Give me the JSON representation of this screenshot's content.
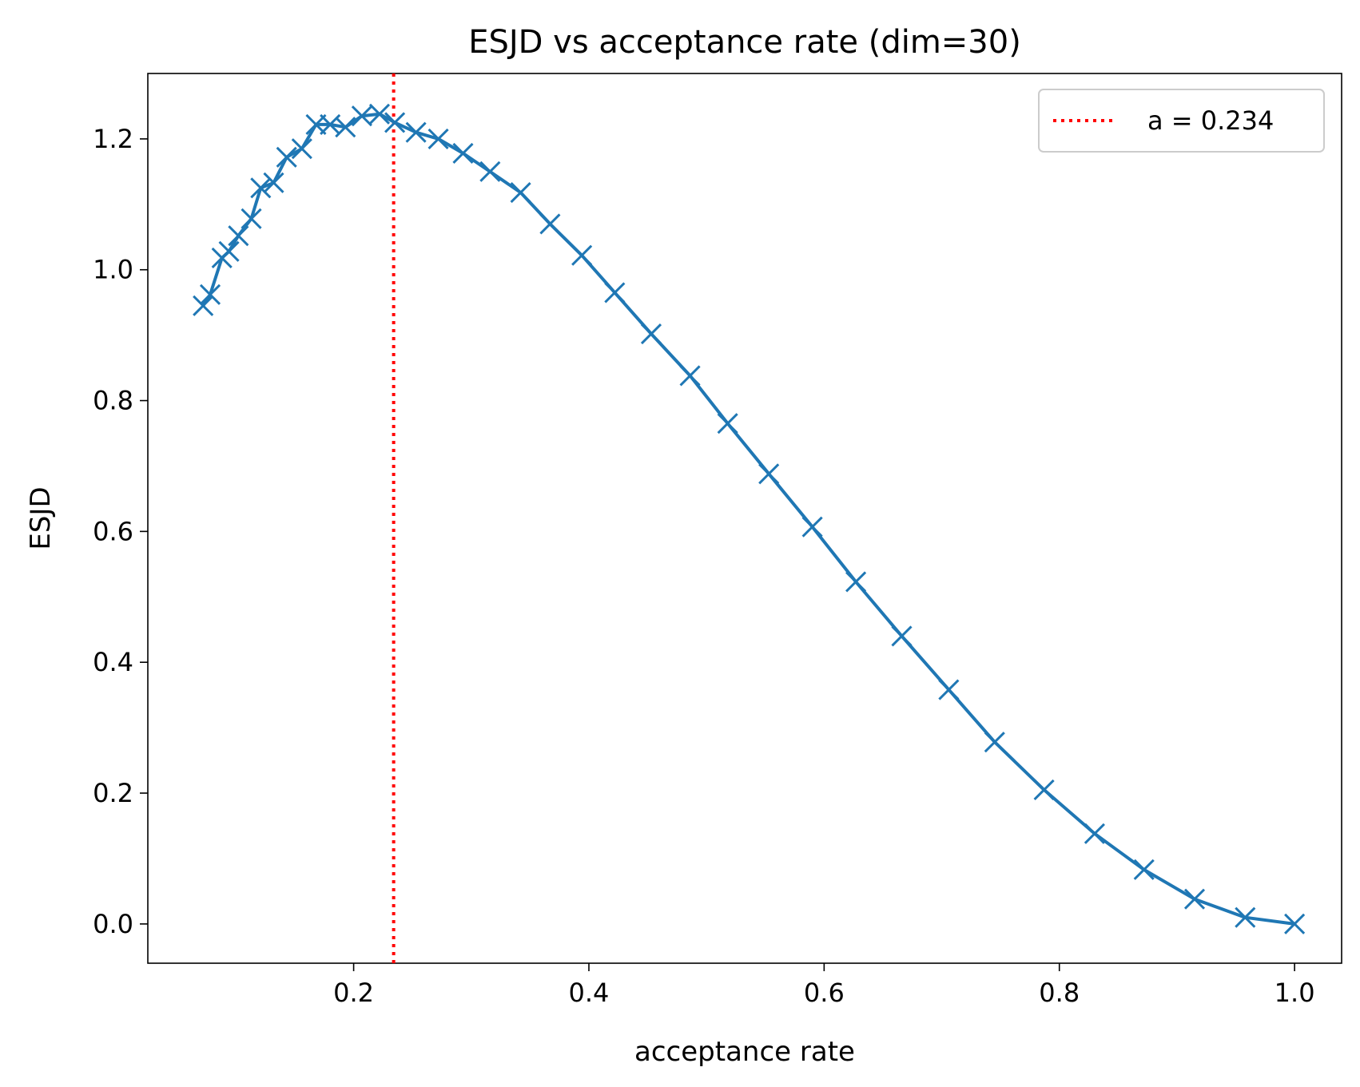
{
  "chart_data": {
    "type": "line",
    "title": "ESJD vs acceptance rate (dim=30)",
    "xlabel": "acceptance rate",
    "ylabel": "ESJD",
    "xlim": [
      0.025,
      1.04
    ],
    "ylim": [
      -0.06,
      1.3
    ],
    "xticks": [
      0.2,
      0.4,
      0.6,
      0.8,
      1.0
    ],
    "xtick_labels": [
      "0.2",
      "0.4",
      "0.6",
      "0.8",
      "1.0"
    ],
    "yticks": [
      0.0,
      0.2,
      0.4,
      0.6,
      0.8,
      1.0,
      1.2
    ],
    "ytick_labels": [
      "0.0",
      "0.2",
      "0.4",
      "0.6",
      "0.8",
      "1.0",
      "1.2"
    ],
    "grid": false,
    "legend_position": "top-right",
    "series": [
      {
        "color": "#1f77b4",
        "marker": "x",
        "x": [
          0.072,
          0.078,
          0.088,
          0.094,
          0.102,
          0.113,
          0.121,
          0.132,
          0.143,
          0.156,
          0.168,
          0.18,
          0.193,
          0.207,
          0.222,
          0.235,
          0.253,
          0.272,
          0.293,
          0.316,
          0.342,
          0.367,
          0.394,
          0.422,
          0.453,
          0.486,
          0.518,
          0.553,
          0.59,
          0.627,
          0.666,
          0.706,
          0.745,
          0.787,
          0.83,
          0.872,
          0.915,
          0.958,
          1.0
        ],
        "y": [
          0.945,
          0.962,
          1.018,
          1.028,
          1.052,
          1.078,
          1.125,
          1.133,
          1.172,
          1.185,
          1.222,
          1.222,
          1.218,
          1.235,
          1.238,
          1.225,
          1.21,
          1.2,
          1.178,
          1.15,
          1.118,
          1.07,
          1.022,
          0.965,
          0.902,
          0.838,
          0.765,
          0.688,
          0.607,
          0.523,
          0.44,
          0.358,
          0.278,
          0.205,
          0.138,
          0.083,
          0.038,
          0.01,
          0.0
        ]
      }
    ],
    "reference_line": {
      "orientation": "vertical",
      "x": 0.234,
      "color": "#ff0000",
      "style": "dotted",
      "label": "a = 0.234"
    }
  }
}
